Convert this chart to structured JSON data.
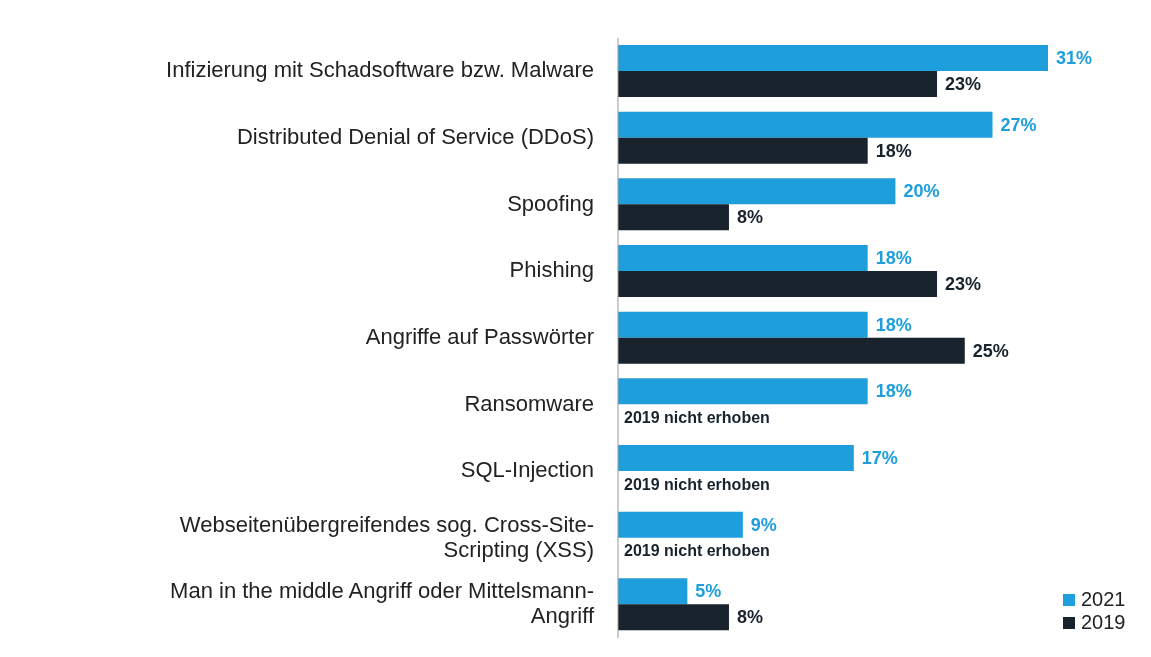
{
  "chart_data": {
    "type": "bar",
    "orientation": "horizontal",
    "categories": [
      "Infizierung mit Schadsoftware bzw. Malware",
      "Distributed Denial of Service (DDoS)",
      "Spoofing",
      "Phishing",
      "Angriffe auf Passwörter",
      "Ransomware",
      "SQL-Injection",
      "Webseitenübergreifendes sog. Cross-Site-Scripting (XSS)",
      "Man in the middle Angriff oder Mittelsmann-Angriff"
    ],
    "series": [
      {
        "name": "2021",
        "color": "#1e9fdb",
        "values": [
          31,
          27,
          20,
          18,
          18,
          18,
          17,
          9,
          5
        ],
        "value_labels": [
          "31%",
          "27%",
          "20%",
          "18%",
          "18%",
          "18%",
          "17%",
          "9%",
          "5%"
        ]
      },
      {
        "name": "2019",
        "color": "#18232d",
        "values": [
          23,
          18,
          8,
          23,
          25,
          null,
          null,
          null,
          8
        ],
        "value_labels": [
          "23%",
          "18%",
          "8%",
          "23%",
          "25%",
          null,
          null,
          null,
          "8%"
        ]
      }
    ],
    "annotations": [
      {
        "text": "2019 nicht erhoben",
        "y": "Ransomware"
      },
      {
        "text": "2019 nicht erhoben",
        "y": "SQL-Injection"
      },
      {
        "text": "2019 nicht erhoben",
        "y": "Webseitenübergreifendes sog. Cross-Site-Scripting (XSS)"
      }
    ],
    "legend": "bottom right",
    "grid": false
  }
}
